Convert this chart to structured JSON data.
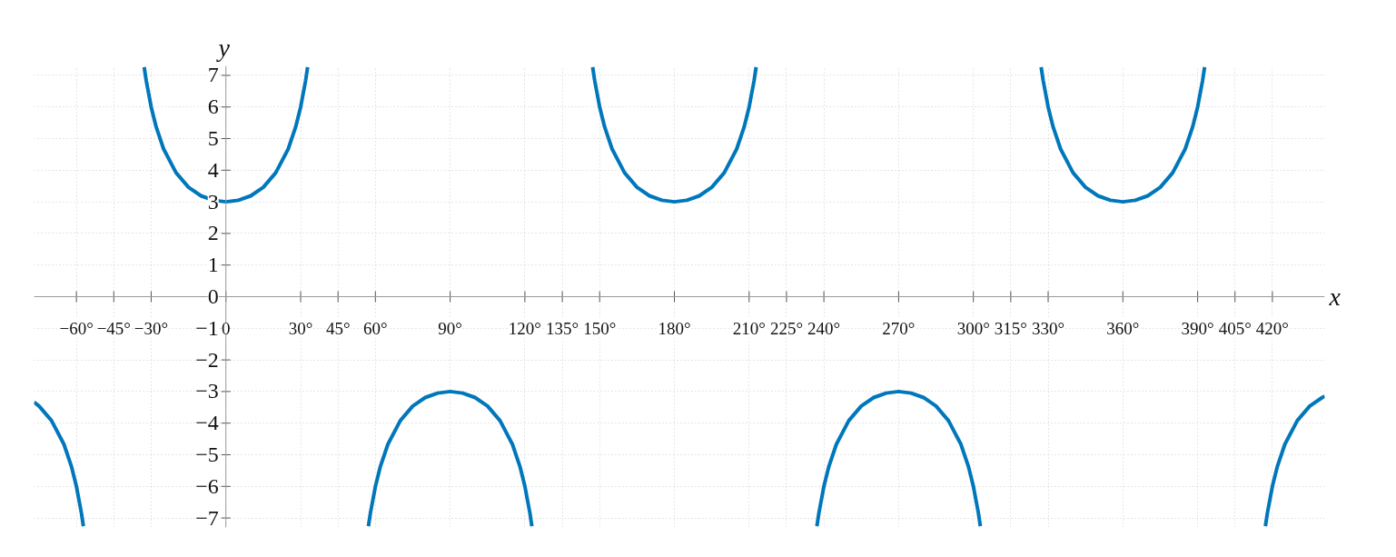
{
  "chart_data": {
    "type": "line",
    "xlabel": "x",
    "ylabel": "y",
    "xlim": [
      -77,
      441
    ],
    "ylim": [
      -7.3,
      7.3
    ],
    "xticks": [
      {
        "value": -60,
        "label": "−60°"
      },
      {
        "value": -45,
        "label": "−45°"
      },
      {
        "value": -30,
        "label": "−30°"
      },
      {
        "value": 0,
        "label": "0"
      },
      {
        "value": 30,
        "label": "30°"
      },
      {
        "value": 45,
        "label": "45°"
      },
      {
        "value": 60,
        "label": "60°"
      },
      {
        "value": 90,
        "label": "90°"
      },
      {
        "value": 120,
        "label": "120°"
      },
      {
        "value": 135,
        "label": "135°"
      },
      {
        "value": 150,
        "label": "150°"
      },
      {
        "value": 180,
        "label": "180°"
      },
      {
        "value": 210,
        "label": "210°"
      },
      {
        "value": 225,
        "label": "225°"
      },
      {
        "value": 240,
        "label": "240°"
      },
      {
        "value": 270,
        "label": "270°"
      },
      {
        "value": 300,
        "label": "300°"
      },
      {
        "value": 315,
        "label": "315°"
      },
      {
        "value": 330,
        "label": "330°"
      },
      {
        "value": 360,
        "label": "360°"
      },
      {
        "value": 390,
        "label": "390°"
      },
      {
        "value": 405,
        "label": "405°"
      },
      {
        "value": 420,
        "label": "420°"
      }
    ],
    "yticks": [
      {
        "value": -7,
        "label": "−7"
      },
      {
        "value": -6,
        "label": "−6"
      },
      {
        "value": -5,
        "label": "−5"
      },
      {
        "value": -4,
        "label": "−4"
      },
      {
        "value": -3,
        "label": "−3"
      },
      {
        "value": -2,
        "label": "−2"
      },
      {
        "value": -1,
        "label": "−1"
      },
      0,
      1,
      2,
      3,
      4,
      5,
      6,
      7
    ],
    "grid": true,
    "marker": "none",
    "line_style": "solid",
    "series": [
      {
        "color": "#0077bb",
        "x": [
          -77,
          -75,
          -70,
          -65,
          -62,
          -60,
          -58,
          -57.2,
          -45,
          -32.8,
          -32,
          -30,
          -28,
          -25,
          -20,
          -15,
          -10,
          -5,
          0,
          5,
          10,
          15,
          20,
          25,
          28,
          30,
          32,
          32.8,
          45,
          57.2,
          58,
          60,
          62,
          65,
          70,
          75,
          80,
          85,
          90,
          95,
          100,
          105,
          110,
          115,
          118,
          120,
          122,
          122.8,
          135,
          147.2,
          148,
          150,
          152,
          155,
          160,
          165,
          170,
          175,
          180,
          185,
          190,
          195,
          200,
          205,
          208,
          210,
          212,
          212.8,
          225,
          237.2,
          238,
          240,
          242,
          245,
          250,
          255,
          260,
          265,
          270,
          275,
          280,
          285,
          290,
          295,
          298,
          300,
          302,
          302.8,
          315,
          327.2,
          328,
          330,
          332,
          335,
          340,
          345,
          350,
          355,
          360,
          365,
          370,
          375,
          380,
          385,
          388,
          390,
          392,
          392.8,
          405,
          417.2,
          418,
          420,
          422,
          425,
          430,
          435,
          440,
          441
        ],
        "values": [
          -3.34,
          -3.46,
          -3.92,
          -4.67,
          -5.37,
          -6,
          -6.84,
          -7.26,
          null,
          7.26,
          6.84,
          6,
          5.37,
          4.67,
          3.92,
          3.46,
          3.19,
          3.05,
          3,
          3.05,
          3.19,
          3.46,
          3.92,
          4.67,
          5.37,
          6,
          6.84,
          7.26,
          null,
          -7.26,
          -6.84,
          -6,
          -5.37,
          -4.67,
          -3.92,
          -3.46,
          -3.19,
          -3.05,
          -3,
          -3.05,
          -3.19,
          -3.46,
          -3.92,
          -4.67,
          -5.37,
          -6,
          -6.84,
          -7.26,
          null,
          7.26,
          6.84,
          6,
          5.37,
          4.67,
          3.92,
          3.46,
          3.19,
          3.05,
          3,
          3.05,
          3.19,
          3.46,
          3.92,
          4.67,
          5.37,
          6,
          6.84,
          7.26,
          null,
          -7.26,
          -6.84,
          -6,
          -5.37,
          -4.67,
          -3.92,
          -3.46,
          -3.19,
          -3.05,
          -3,
          -3.05,
          -3.19,
          -3.46,
          -3.92,
          -4.67,
          -5.37,
          -6,
          -6.84,
          -7.26,
          null,
          7.26,
          6.84,
          6,
          5.37,
          4.67,
          3.92,
          3.46,
          3.19,
          3.05,
          3,
          3.05,
          3.19,
          3.46,
          3.92,
          4.67,
          5.37,
          6,
          6.84,
          7.26,
          null,
          -7.26,
          -6.84,
          -6,
          -5.37,
          -4.67,
          -3.92,
          -3.46,
          -3.19,
          -3.15
        ]
      }
    ]
  }
}
